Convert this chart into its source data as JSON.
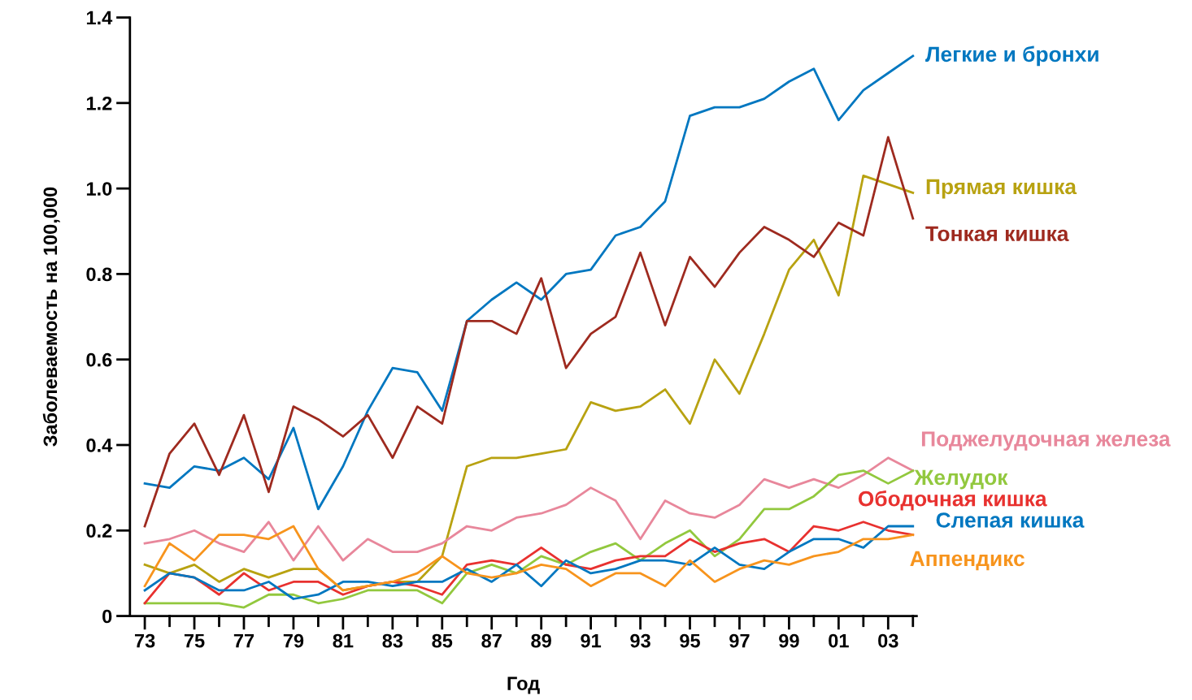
{
  "chart_data": {
    "type": "line",
    "xlabel": "Год",
    "ylabel": "Заболеваемость на 100,000",
    "x": [
      1973,
      1974,
      1975,
      1976,
      1977,
      1978,
      1979,
      1980,
      1981,
      1982,
      1983,
      1984,
      1985,
      1986,
      1987,
      1988,
      1989,
      1990,
      1991,
      1992,
      1993,
      1994,
      1995,
      1996,
      1997,
      1998,
      1999,
      2000,
      2001,
      2002,
      2003,
      2004
    ],
    "xlim": [
      1972.4,
      2004.15
    ],
    "xticks": [
      {
        "value": 1973,
        "label": "73"
      },
      {
        "value": 1974,
        "label": null
      },
      {
        "value": 1975,
        "label": "75"
      },
      {
        "value": 1976,
        "label": null
      },
      {
        "value": 1977,
        "label": "77"
      },
      {
        "value": 1978,
        "label": null
      },
      {
        "value": 1979,
        "label": "79"
      },
      {
        "value": 1980,
        "label": null
      },
      {
        "value": 1981,
        "label": "81"
      },
      {
        "value": 1982,
        "label": null
      },
      {
        "value": 1983,
        "label": "83"
      },
      {
        "value": 1984,
        "label": null
      },
      {
        "value": 1985,
        "label": "85"
      },
      {
        "value": 1986,
        "label": null
      },
      {
        "value": 1987,
        "label": "87"
      },
      {
        "value": 1988,
        "label": null
      },
      {
        "value": 1989,
        "label": "89"
      },
      {
        "value": 1990,
        "label": null
      },
      {
        "value": 1991,
        "label": "91"
      },
      {
        "value": 1992,
        "label": null
      },
      {
        "value": 1993,
        "label": "93"
      },
      {
        "value": 1994,
        "label": null
      },
      {
        "value": 1995,
        "label": "95"
      },
      {
        "value": 1996,
        "label": null
      },
      {
        "value": 1997,
        "label": "97"
      },
      {
        "value": 1998,
        "label": null
      },
      {
        "value": 1999,
        "label": "99"
      },
      {
        "value": 2000,
        "label": null
      },
      {
        "value": 2001,
        "label": "01"
      },
      {
        "value": 2002,
        "label": null
      },
      {
        "value": 2003,
        "label": "03"
      },
      {
        "value": 2004,
        "label": null
      }
    ],
    "ylim": [
      0,
      1.4
    ],
    "yticks": [
      0,
      {
        "value": 0.2,
        "label": "0.2"
      },
      {
        "value": 0.4,
        "label": "0.4"
      },
      {
        "value": 0.6,
        "label": "0.6"
      },
      {
        "value": 0.8,
        "label": "0.8"
      },
      {
        "value": 1.0,
        "label": "1.0"
      },
      {
        "value": 1.2,
        "label": "1.2"
      },
      {
        "value": 1.4,
        "label": "1.4"
      }
    ],
    "grid": false,
    "legend": false,
    "marker": "none",
    "line_style": "solid",
    "series": [
      {
        "name": "Легкие и бронхи",
        "color": "#0077c0",
        "values": [
          0.31,
          0.3,
          0.35,
          0.34,
          0.37,
          0.32,
          0.44,
          0.25,
          0.35,
          0.48,
          0.58,
          0.57,
          0.48,
          0.69,
          0.74,
          0.78,
          0.74,
          0.8,
          0.81,
          0.89,
          0.91,
          0.97,
          1.17,
          1.19,
          1.19,
          1.21,
          1.25,
          1.28,
          1.16,
          1.23,
          1.27,
          1.31
        ]
      },
      {
        "name": "Прямая кишка",
        "color": "#b8a211",
        "values": [
          0.12,
          0.1,
          0.12,
          0.08,
          0.11,
          0.09,
          0.11,
          0.11,
          0.06,
          0.07,
          0.08,
          0.08,
          0.14,
          0.35,
          0.37,
          0.37,
          0.38,
          0.39,
          0.5,
          0.48,
          0.49,
          0.53,
          0.45,
          0.6,
          0.52,
          0.66,
          0.81,
          0.88,
          0.75,
          1.03,
          1.01,
          0.99
        ]
      },
      {
        "name": "Тонкая кишка",
        "color": "#9e2a1f",
        "values": [
          0.21,
          0.38,
          0.45,
          0.33,
          0.47,
          0.29,
          0.49,
          0.46,
          0.42,
          0.47,
          0.37,
          0.49,
          0.45,
          0.69,
          0.69,
          0.66,
          0.79,
          0.58,
          0.66,
          0.7,
          0.85,
          0.68,
          0.84,
          0.77,
          0.85,
          0.91,
          0.88,
          0.84,
          0.92,
          0.89,
          1.12,
          0.93
        ]
      },
      {
        "name": "Поджелудочная железа",
        "color": "#e8879b",
        "values": [
          0.17,
          0.18,
          0.2,
          0.17,
          0.15,
          0.22,
          0.13,
          0.21,
          0.13,
          0.18,
          0.15,
          0.15,
          0.17,
          0.21,
          0.2,
          0.23,
          0.24,
          0.26,
          0.3,
          0.27,
          0.18,
          0.27,
          0.24,
          0.23,
          0.26,
          0.32,
          0.3,
          0.32,
          0.3,
          0.33,
          0.37,
          0.34
        ]
      },
      {
        "name": "Желудок",
        "color": "#92c83e",
        "values": [
          0.03,
          0.03,
          0.03,
          0.03,
          0.02,
          0.05,
          0.05,
          0.03,
          0.04,
          0.06,
          0.06,
          0.06,
          0.03,
          0.1,
          0.12,
          0.1,
          0.14,
          0.12,
          0.15,
          0.17,
          0.13,
          0.17,
          0.2,
          0.14,
          0.18,
          0.25,
          0.25,
          0.28,
          0.33,
          0.34,
          0.31,
          0.34
        ]
      },
      {
        "name": "Ободочная кишка",
        "color": "#e8312f",
        "values": [
          0.03,
          0.1,
          0.09,
          0.05,
          0.1,
          0.06,
          0.08,
          0.08,
          0.05,
          0.07,
          0.08,
          0.07,
          0.05,
          0.12,
          0.13,
          0.12,
          0.16,
          0.12,
          0.11,
          0.13,
          0.14,
          0.14,
          0.18,
          0.15,
          0.17,
          0.18,
          0.15,
          0.21,
          0.2,
          0.22,
          0.2,
          0.19
        ]
      },
      {
        "name": "Слепая кишка",
        "color": "#0077c0",
        "values": [
          0.06,
          0.1,
          0.09,
          0.06,
          0.06,
          0.08,
          0.04,
          0.05,
          0.08,
          0.08,
          0.07,
          0.08,
          0.08,
          0.11,
          0.08,
          0.12,
          0.07,
          0.13,
          0.1,
          0.11,
          0.13,
          0.13,
          0.12,
          0.16,
          0.12,
          0.11,
          0.15,
          0.18,
          0.18,
          0.16,
          0.21,
          0.21
        ]
      },
      {
        "name": "Аппендикс",
        "color": "#f7941d",
        "values": [
          0.07,
          0.17,
          0.13,
          0.19,
          0.19,
          0.18,
          0.21,
          0.11,
          0.06,
          0.07,
          0.08,
          0.1,
          0.14,
          0.1,
          0.09,
          0.1,
          0.12,
          0.11,
          0.07,
          0.1,
          0.1,
          0.07,
          0.13,
          0.08,
          0.11,
          0.13,
          0.12,
          0.14,
          0.15,
          0.18,
          0.18,
          0.19
        ]
      }
    ]
  }
}
